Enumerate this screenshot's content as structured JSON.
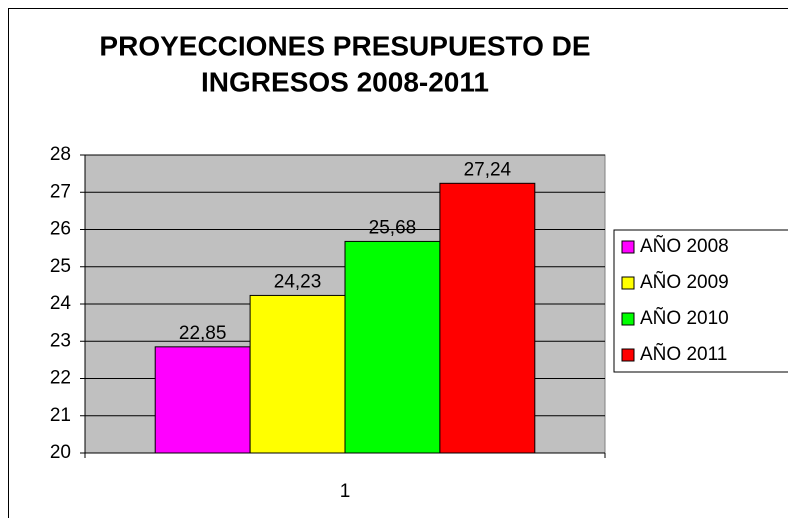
{
  "chart_data": {
    "type": "bar",
    "title": [
      "PROYECCIONES PRESUPUESTO DE",
      "INGRESOS 2008-2011"
    ],
    "categories": [
      "1"
    ],
    "series": [
      {
        "name": "AÑO 2008",
        "color": "#ff00ff",
        "values": [
          22.85
        ],
        "value_labels": [
          "22,85"
        ]
      },
      {
        "name": "AÑO 2009",
        "color": "#ffff00",
        "values": [
          24.23
        ],
        "value_labels": [
          "24,23"
        ]
      },
      {
        "name": "AÑO 2010",
        "color": "#00ff00",
        "values": [
          25.68
        ],
        "value_labels": [
          "25,68"
        ]
      },
      {
        "name": "AÑO 2011",
        "color": "#ff0000",
        "values": [
          27.24
        ],
        "value_labels": [
          "27,24"
        ]
      }
    ],
    "ylim": [
      20,
      28
    ],
    "yticks": [
      20,
      21,
      22,
      23,
      24,
      25,
      26,
      27,
      28
    ],
    "grid": true,
    "legend": "right",
    "plot_background": "#c0c0c0"
  }
}
